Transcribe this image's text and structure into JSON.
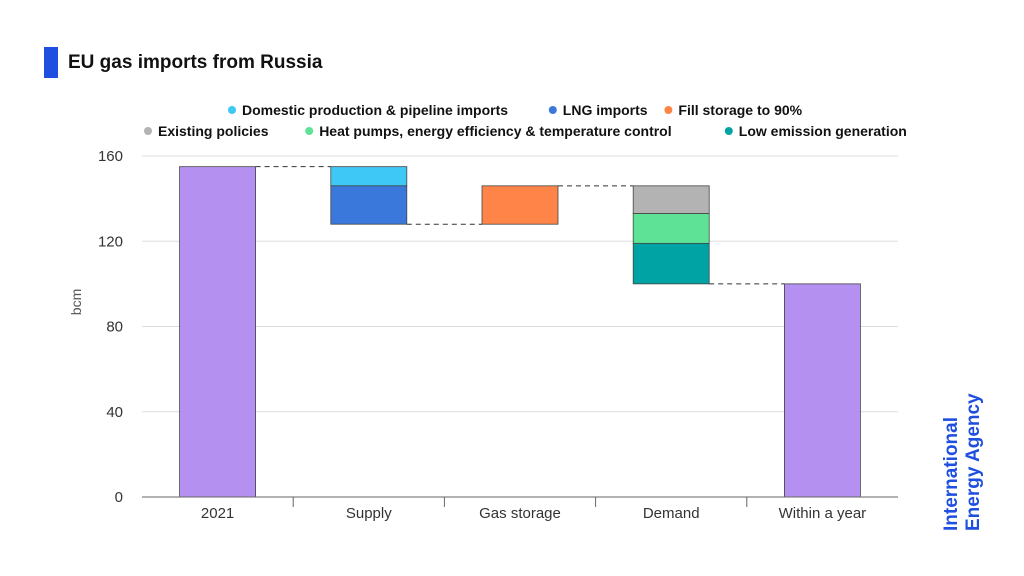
{
  "header": {
    "title": "EU gas imports from Russia"
  },
  "logo": {
    "line1": "International",
    "line2": "Energy Agency"
  },
  "chart_data": {
    "type": "bar",
    "subtype": "waterfall",
    "title": "EU gas imports from Russia",
    "ylabel": "bcm",
    "xlabel": "",
    "ylim": [
      0,
      160
    ],
    "yticks": [
      0,
      40,
      80,
      120,
      160
    ],
    "grid": true,
    "legend_position": "top",
    "categories": [
      "2021",
      "Supply",
      "Gas storage",
      "Demand",
      "Within a year"
    ],
    "legend": [
      {
        "name": "Domestic production & pipeline imports",
        "color": "#3ec8f5"
      },
      {
        "name": "LNG imports",
        "color": "#3a78dc"
      },
      {
        "name": "Fill storage to 90%",
        "color": "#ff8448"
      },
      {
        "name": "Existing policies",
        "color": "#b3b3b3"
      },
      {
        "name": "Heat pumps, energy efficiency & temperature control",
        "color": "#5ee396"
      },
      {
        "name": "Low emission generation",
        "color": "#00a3a3"
      }
    ],
    "segments": [
      {
        "category": "2021",
        "series": "Total",
        "bottom": 0,
        "top": 155,
        "color": "#b490f0"
      },
      {
        "category": "Supply",
        "series": "Domestic production & pipeline imports",
        "bottom": 146,
        "top": 155,
        "color": "#3ec8f5"
      },
      {
        "category": "Supply",
        "series": "LNG imports",
        "bottom": 128,
        "top": 146,
        "color": "#3a78dc"
      },
      {
        "category": "Gas storage",
        "series": "Fill storage to 90%",
        "bottom": 128,
        "top": 146,
        "color": "#ff8448"
      },
      {
        "category": "Demand",
        "series": "Existing policies",
        "bottom": 133,
        "top": 146,
        "color": "#b3b3b3"
      },
      {
        "category": "Demand",
        "series": "Heat pumps, energy efficiency & temperature control",
        "bottom": 119,
        "top": 133,
        "color": "#5ee396"
      },
      {
        "category": "Demand",
        "series": "Low emission generation",
        "bottom": 100,
        "top": 119,
        "color": "#00a3a3"
      },
      {
        "category": "Within a year",
        "series": "Total",
        "bottom": 0,
        "top": 100,
        "color": "#b490f0"
      }
    ],
    "connectors": [
      {
        "from": "2021",
        "to": "Supply",
        "value": 155
      },
      {
        "from": "Supply",
        "to": "Gas storage",
        "value": 128
      },
      {
        "from": "Gas storage",
        "to": "Demand",
        "value": 146
      },
      {
        "from": "Demand",
        "to": "Within a year",
        "value": 100
      }
    ]
  }
}
